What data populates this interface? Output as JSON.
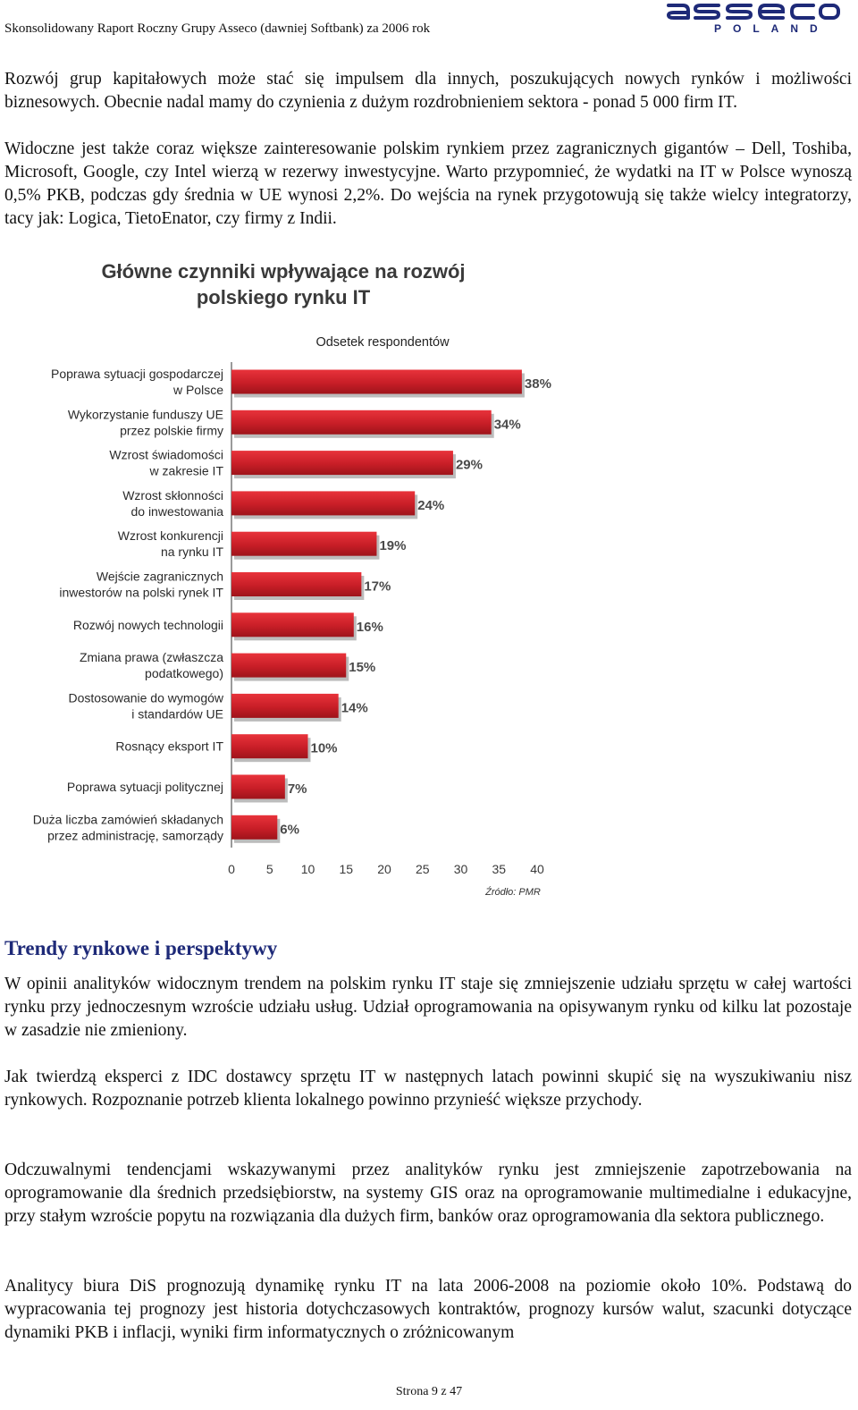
{
  "header": {
    "title": "Skonsolidowany Raport Roczny Grupy Asseco (dawniej Softbank) za 2006 rok",
    "logo_text": "asseco",
    "logo_country": "POLAND"
  },
  "intro": {
    "p1": "Rozwój grup kapitałowych może stać się impulsem dla innych, poszukujących nowych rynków i możliwości biznesowych. Obecnie nadal mamy do czynienia z dużym rozdrobnieniem sektora - ponad 5 000 firm IT.",
    "p2": "Widoczne jest także coraz większe zainteresowanie polskim rynkiem przez zagranicznych gigantów – Dell, Toshiba, Microsoft, Google, czy Intel wierzą w rezerwy inwestycyjne. Warto przypomnieć, że wydatki na IT w Polsce wynoszą 0,5% PKB, podczas gdy średnia w UE wynosi 2,2%. Do wejścia na rynek przygotowują się także wielcy integratorzy, tacy jak: Logica, TietoEnator, czy firmy z Indii."
  },
  "chart_data": {
    "type": "bar",
    "orientation": "horizontal",
    "title": "Główne czynniki wpływające na rozwój polskiego rynku IT",
    "title_lines": [
      "Główne czynniki wpływające na rozwój",
      "polskiego rynku IT"
    ],
    "subtitle": "Odsetek respondentów",
    "categories": [
      [
        "Poprawa sytuacji gospodarczej",
        "w Polsce"
      ],
      [
        "Wykorzystanie funduszy UE",
        "przez polskie firmy"
      ],
      [
        "Wzrost świadomości",
        "w zakresie IT"
      ],
      [
        "Wzrost skłonności",
        "do inwestowania"
      ],
      [
        "Wzrost konkurencji",
        "na rynku IT"
      ],
      [
        "Wejście zagranicznych",
        "inwestorów na polski rynek IT"
      ],
      [
        "Rozwój nowych technologii"
      ],
      [
        "Zmiana prawa (zwłaszcza",
        "podatkowego)"
      ],
      [
        "Dostosowanie do wymogów",
        "i standardów UE"
      ],
      [
        "Rosnący eksport IT"
      ],
      [
        "Poprawa sytuacji politycznej"
      ],
      [
        "Duża liczba zamówień składanych",
        "przez administrację, samorządy"
      ]
    ],
    "values": [
      38,
      34,
      29,
      24,
      19,
      17,
      16,
      15,
      14,
      10,
      7,
      6
    ],
    "value_labels": [
      "38%",
      "34%",
      "29%",
      "24%",
      "19%",
      "17%",
      "16%",
      "15%",
      "14%",
      "10%",
      "7%",
      "6%"
    ],
    "xlim": [
      0,
      40
    ],
    "xticks": [
      0,
      5,
      10,
      15,
      20,
      25,
      30,
      35,
      40
    ],
    "source": "Źródło: PMR",
    "bar_color": "#d4202a",
    "grid": false
  },
  "section": {
    "title": "Trendy rynkowe i perspektywy"
  },
  "body": {
    "p1": "W opinii analityków widocznym trendem na polskim rynku IT staje się zmniejszenie udziału sprzętu w całej wartości rynku przy jednoczesnym wzroście udziału usług. Udział oprogramowania na opisywanym rynku od kilku lat pozostaje w zasadzie nie zmieniony.",
    "p2": "Jak twierdzą eksperci z IDC dostawcy sprzętu IT w następnych latach powinni skupić się na wyszukiwaniu nisz rynkowych. Rozpoznanie potrzeb klienta lokalnego powinno przynieść większe przychody.",
    "p3": "Odczuwalnymi tendencjami wskazywanymi przez analityków rynku jest zmniejszenie zapotrzebowania na oprogramowanie dla średnich przedsiębiorstw, na systemy GIS oraz na oprogramowanie multimedialne i edukacyjne, przy stałym wzroście popytu na rozwiązania dla dużych firm, banków oraz oprogramowania dla sektora publicznego.",
    "p4": "Analitycy biura DiS prognozują dynamikę rynku IT na lata 2006-2008 na poziomie około 10%. Podstawą do wypracowania tej prognozy jest historia dotychczasowych kontraktów, prognozy kursów walut, szacunki dotyczące dynamiki PKB i inflacji, wyniki firm informatycznych o zróżnicowanym"
  },
  "footer": {
    "page_label": "Strona 9 z 47"
  }
}
